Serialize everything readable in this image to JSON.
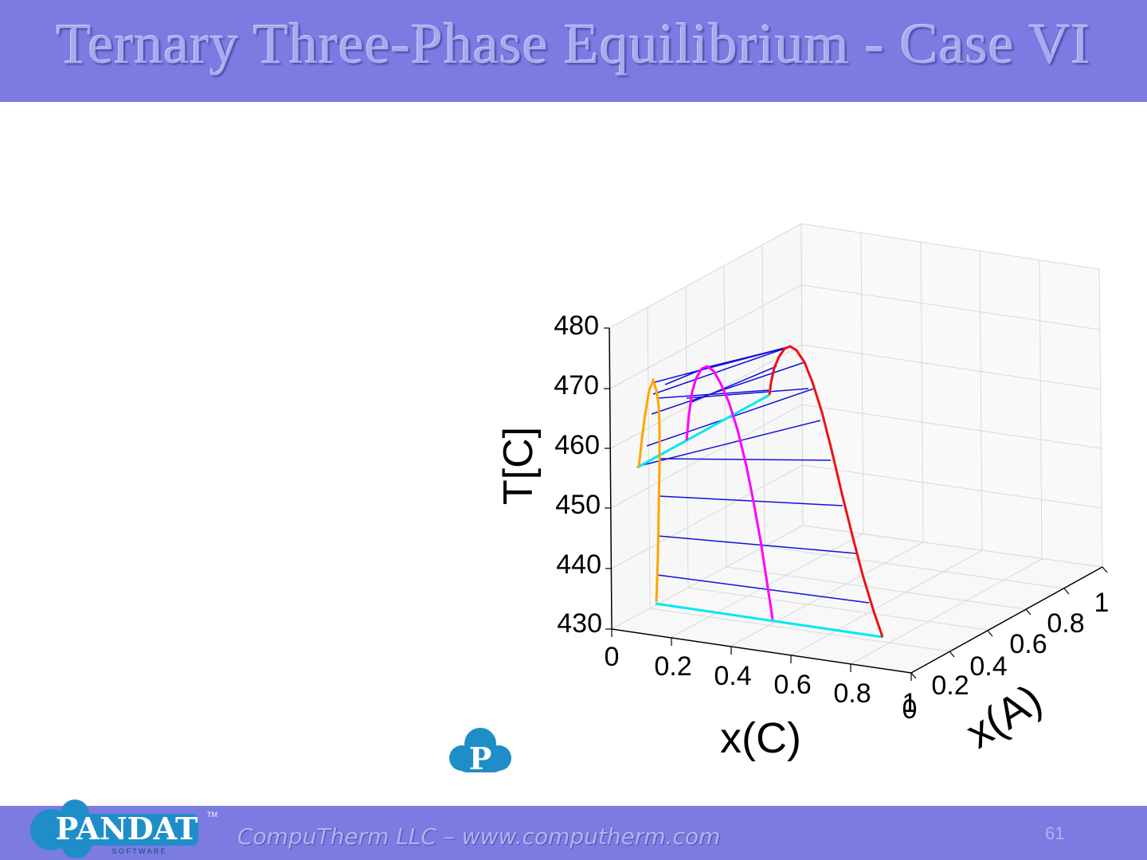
{
  "slide": {
    "title": "Ternary Three-Phase Equilibrium - Case VI",
    "footer_text": "CompuTherm LLC – www.computherm.com",
    "page_number": "61",
    "logo_text": "PANDAT",
    "logo_subtext": "S O F T W A R E",
    "logo_tm": "TM",
    "watermark_letter": "P"
  },
  "colors": {
    "header": "#7b7be2",
    "tie_line": "#1010e0",
    "phase_orange": "#ffa500",
    "phase_magenta": "#ff00ff",
    "phase_red": "#ee1111",
    "base_line": "#00e8f0",
    "logo": "#1f8ec8"
  },
  "chart_data": {
    "type": "3d-line",
    "xlabel": "x(C)",
    "ylabel": "x(A)",
    "zlabel": "T[C]",
    "x_ticks": [
      "0",
      "0.2",
      "0.4",
      "0.6",
      "0.8",
      "1"
    ],
    "y_ticks": [
      "0",
      "0.2",
      "0.4",
      "0.6",
      "0.8",
      "1"
    ],
    "z_ticks": [
      "430",
      "440",
      "450",
      "460",
      "470",
      "480"
    ],
    "zlim": [
      430,
      480
    ],
    "series": [
      {
        "color": "orange",
        "label_pos": "left"
      },
      {
        "color": "magenta",
        "label_pos": "middle"
      },
      {
        "color": "red",
        "label_pos": "right"
      }
    ],
    "tie_line_temperatures": [
      433,
      438,
      443,
      448,
      453,
      458,
      463,
      468,
      472
    ],
    "base_line_temperature": 432
  }
}
